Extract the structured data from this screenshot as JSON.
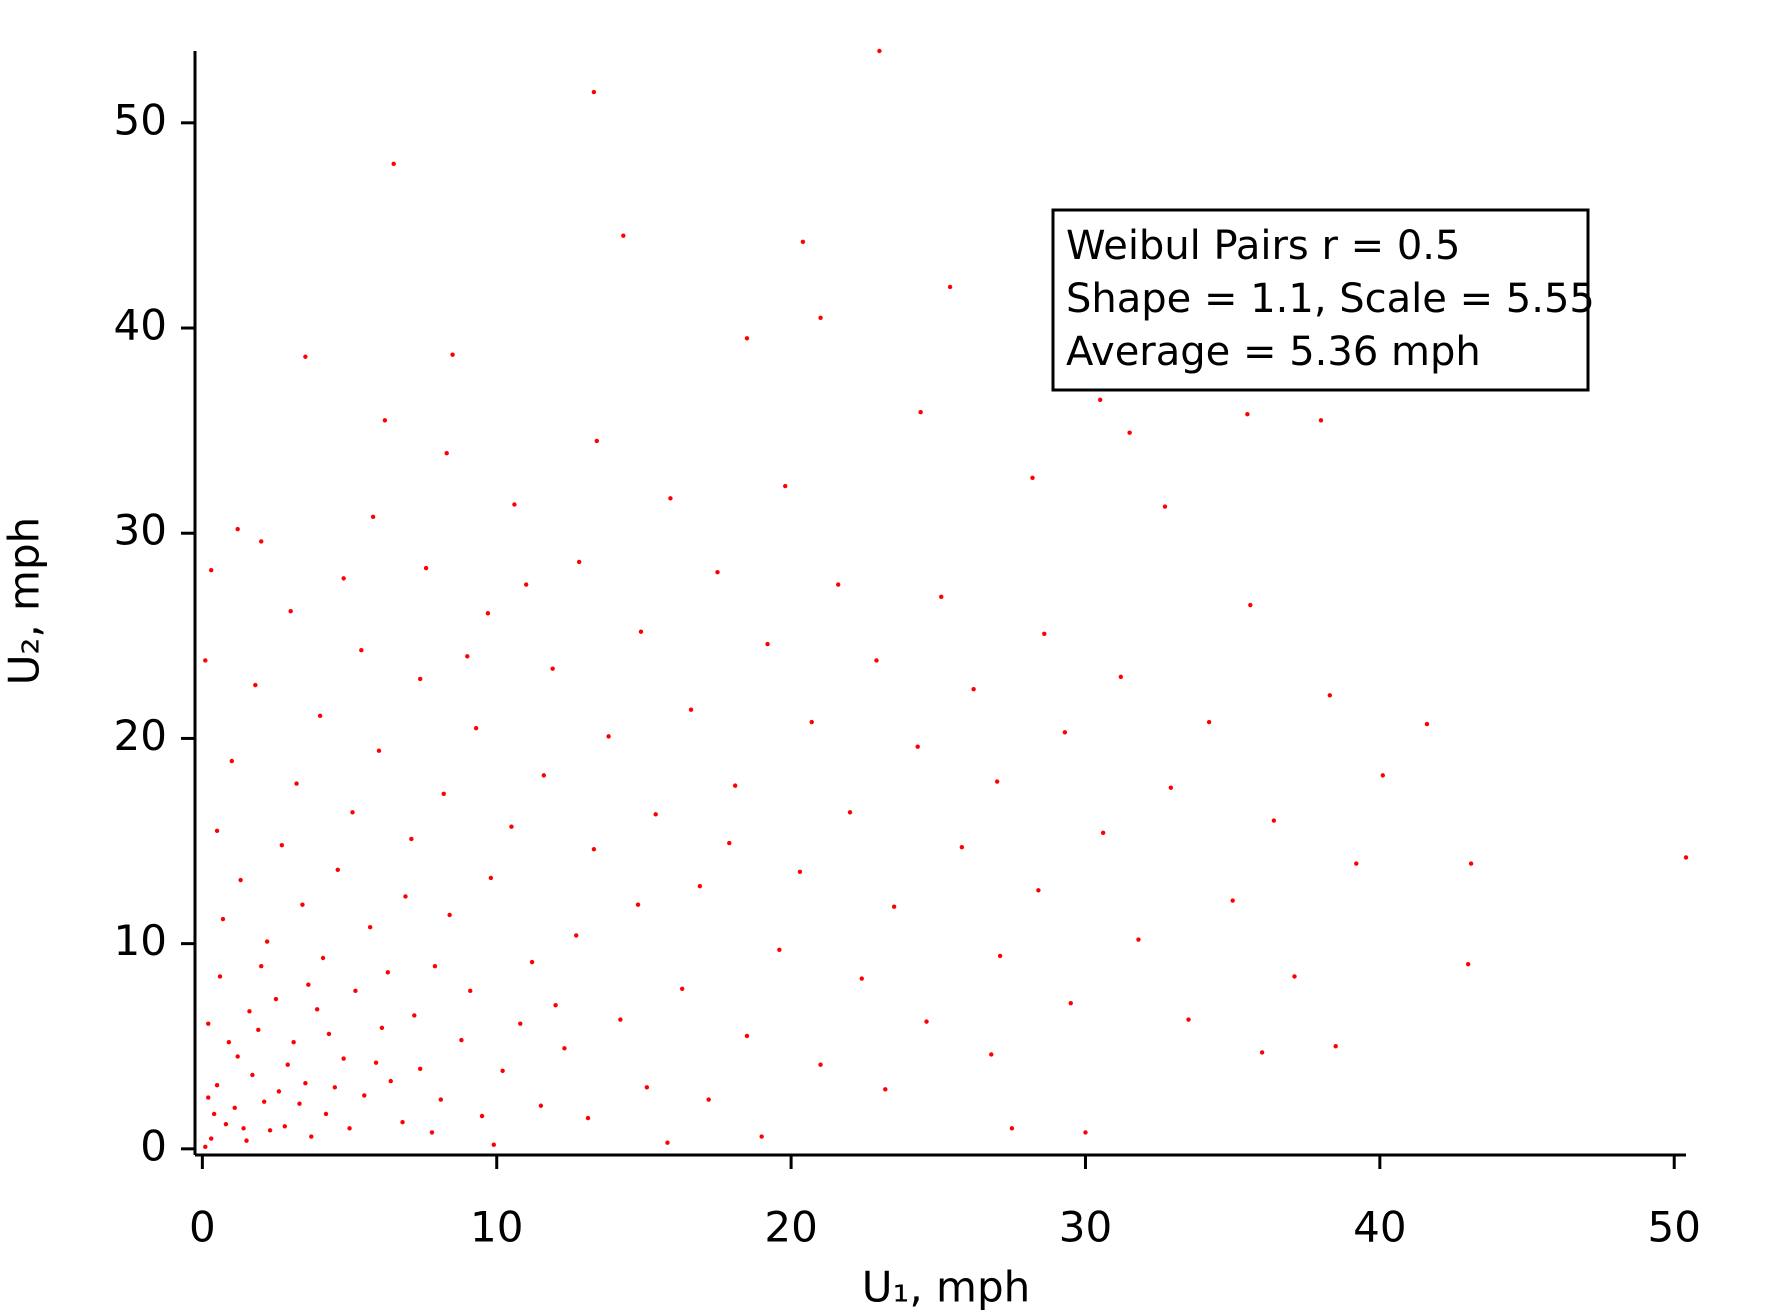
{
  "chart_data": {
    "type": "scatter",
    "x_label": "U₁, mph",
    "y_label": "U₂, mph",
    "annotation": [
      "Weibul Pairs r = 0.5",
      "Shape = 1.1, Scale = 5.55",
      "Average = 5.36 mph"
    ],
    "xlim": [
      -0.25,
      50.4
    ],
    "ylim": [
      -0.3,
      53.5
    ],
    "xticks": [
      0,
      10,
      20,
      30,
      40,
      50
    ],
    "yticks": [
      0,
      10,
      20,
      30,
      40,
      50
    ],
    "grid": false,
    "series": [
      {
        "color": "#ff0000",
        "x": [
          0.3,
          0.8,
          1.5,
          2.1,
          0.5,
          1.2,
          2.8,
          3.5,
          0.2,
          1.9,
          3.1,
          4.2,
          4.8,
          5.5,
          2.5,
          0.6,
          6.1,
          6.8,
          3.9,
          5.2,
          7.4,
          1.1,
          0.4,
          2.3,
          3.3,
          1.7,
          4.5,
          2.9,
          0.9,
          5.9,
          7.2,
          8.1,
          6.3,
          4.1,
          2.2,
          0.7,
          8.8,
          9.5,
          7.9,
          5.7,
          3.4,
          1.3,
          10.2,
          9.1,
          10.8,
          11.5,
          6.9,
          4.6,
          2.7,
          0.5,
          12.3,
          11.2,
          8.4,
          13.1,
          9.8,
          7.1,
          5.1,
          3.2,
          1.0,
          14.2,
          12.7,
          15.1,
          10.5,
          8.2,
          6.0,
          4.0,
          1.8,
          16.3,
          14.8,
          13.3,
          17.2,
          11.6,
          9.3,
          7.4,
          5.4,
          3.0,
          18.5,
          16.9,
          15.4,
          19.6,
          13.8,
          11.9,
          9.7,
          7.6,
          5.8,
          21.0,
          20.3,
          18.1,
          22.4,
          16.6,
          14.9,
          12.8,
          10.6,
          8.3,
          23.5,
          22.0,
          20.7,
          24.6,
          19.2,
          17.5,
          15.9,
          13.4,
          25.8,
          24.3,
          27.1,
          22.9,
          21.6,
          19.8,
          28.4,
          27.0,
          26.2,
          29.5,
          25.1,
          30.6,
          29.3,
          31.8,
          28.6,
          32.9,
          33.5,
          31.2,
          35.0,
          34.2,
          36.4,
          37.1,
          38.3,
          39.2,
          40.1,
          36.0,
          38.5,
          41.6,
          43.1,
          50.4,
          43.0,
          35.6,
          32.7,
          30.5,
          35.5,
          38.0,
          31.5,
          28.2,
          24.4,
          25.4,
          21.0,
          18.5,
          20.4,
          14.3,
          6.5,
          13.3,
          23.0,
          27.5,
          30.0,
          19.0,
          15.8,
          9.9,
          0.1,
          0.3,
          2.0,
          0.1,
          1.4,
          2.6,
          3.7,
          0.2,
          4.3,
          1.6,
          5.0,
          6.4,
          2.0,
          7.8,
          3.6,
          12.0,
          17.9,
          23.2,
          26.8,
          9.0,
          11.0,
          4.8,
          6.2,
          8.5,
          3.5,
          1.2
        ],
        "values": [
          0.5,
          1.2,
          0.4,
          2.3,
          3.1,
          4.5,
          1.1,
          3.2,
          6.1,
          5.8,
          5.2,
          1.7,
          4.4,
          2.6,
          7.3,
          8.4,
          5.9,
          1.3,
          6.8,
          7.7,
          3.9,
          2.0,
          1.7,
          0.9,
          2.2,
          3.6,
          3.0,
          4.1,
          5.2,
          4.2,
          6.5,
          2.4,
          8.6,
          9.3,
          10.1,
          11.2,
          5.3,
          1.6,
          8.9,
          10.8,
          11.9,
          13.1,
          3.8,
          7.7,
          6.1,
          2.1,
          12.3,
          13.6,
          14.8,
          15.5,
          4.9,
          9.1,
          11.4,
          1.5,
          13.2,
          15.1,
          16.4,
          17.8,
          18.9,
          6.3,
          10.4,
          3.0,
          15.7,
          17.3,
          19.4,
          21.1,
          22.6,
          7.8,
          11.9,
          14.6,
          2.4,
          18.2,
          20.5,
          22.9,
          24.3,
          26.2,
          5.5,
          12.8,
          16.3,
          9.7,
          20.1,
          23.4,
          26.1,
          28.3,
          30.8,
          4.1,
          13.5,
          17.7,
          8.3,
          21.4,
          25.2,
          28.6,
          31.4,
          33.9,
          11.8,
          16.4,
          20.8,
          6.2,
          24.6,
          28.1,
          31.7,
          34.5,
          14.7,
          19.6,
          9.4,
          23.8,
          27.5,
          32.3,
          12.6,
          17.9,
          22.4,
          7.1,
          26.9,
          15.4,
          20.3,
          10.2,
          25.1,
          17.6,
          6.3,
          23.0,
          12.1,
          20.8,
          16.0,
          8.4,
          22.1,
          13.9,
          18.2,
          4.7,
          5.0,
          20.7,
          13.9,
          14.2,
          9.0,
          26.5,
          31.3,
          36.5,
          35.8,
          35.5,
          34.9,
          32.7,
          35.9,
          42.0,
          40.5,
          39.5,
          44.2,
          44.5,
          48.0,
          51.5,
          53.5,
          1.0,
          0.8,
          0.6,
          0.3,
          0.2,
          23.8,
          28.2,
          29.6,
          0.1,
          1.0,
          2.8,
          0.6,
          2.5,
          5.6,
          6.7,
          1.0,
          3.3,
          8.9,
          0.8,
          8.0,
          7.0,
          14.9,
          2.9,
          4.6,
          24.0,
          27.5,
          27.8,
          35.5,
          38.7,
          38.6,
          30.2
        ]
      }
    ]
  }
}
